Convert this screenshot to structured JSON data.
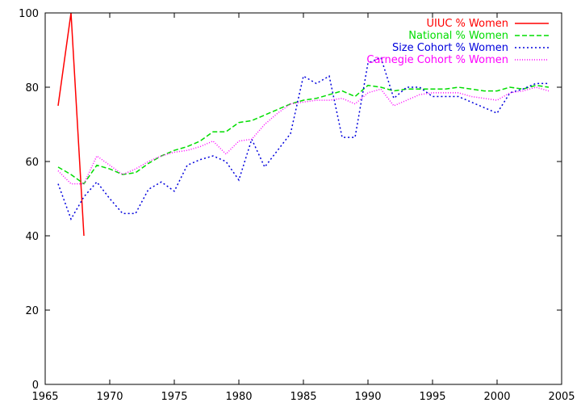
{
  "chart_data": {
    "type": "line",
    "title": "",
    "xlabel": "",
    "ylabel": "",
    "xlim": [
      1965,
      2005
    ],
    "ylim": [
      0,
      100
    ],
    "xticks": [
      1965,
      1970,
      1975,
      1980,
      1985,
      1990,
      1995,
      2000,
      2005
    ],
    "yticks": [
      0,
      20,
      40,
      60,
      80,
      100
    ],
    "grid": false,
    "legend_position": "top-right",
    "series": [
      {
        "name": "UIUC % Women",
        "color": "#ff0000",
        "dash": "solid",
        "x": [
          1966,
          1967,
          1968
        ],
        "y": [
          75,
          100,
          40
        ]
      },
      {
        "name": "National % Women",
        "color": "#00dd00",
        "dash": "dashed",
        "x": [
          1966,
          1967,
          1968,
          1969,
          1970,
          1971,
          1972,
          1973,
          1974,
          1975,
          1976,
          1977,
          1978,
          1979,
          1980,
          1981,
          1982,
          1983,
          1984,
          1985,
          1986,
          1987,
          1988,
          1989,
          1990,
          1991,
          1992,
          1993,
          1994,
          1995,
          1996,
          1997,
          1998,
          1999,
          2000,
          2001,
          2002,
          2003,
          2004
        ],
        "y": [
          58.5,
          56.5,
          54,
          59,
          58,
          56.5,
          57,
          59.5,
          61.5,
          63,
          64,
          65.5,
          68,
          68,
          70.5,
          71,
          72.5,
          74,
          75.5,
          76.5,
          77,
          78,
          79,
          77.5,
          80.5,
          80,
          79,
          79.5,
          79.5,
          79.5,
          79.5,
          80,
          79.5,
          79,
          79,
          80,
          79.5,
          80.5,
          80
        ]
      },
      {
        "name": "Size Cohort % Women",
        "color": "#0000dd",
        "dash": "dotted-coarse",
        "x": [
          1966,
          1967,
          1968,
          1969,
          1970,
          1971,
          1972,
          1973,
          1974,
          1975,
          1976,
          1977,
          1978,
          1979,
          1980,
          1981,
          1982,
          1983,
          1984,
          1985,
          1986,
          1987,
          1988,
          1989,
          1990,
          1991,
          1992,
          1993,
          1994,
          1995,
          1996,
          1997,
          1998,
          1999,
          2000,
          2001,
          2002,
          2003,
          2004
        ],
        "y": [
          54,
          44.5,
          50.5,
          54.5,
          50,
          46,
          46,
          52.5,
          54.5,
          52,
          59,
          60.5,
          61.5,
          60,
          55,
          66,
          58.5,
          63,
          67.5,
          83,
          81,
          83,
          66.5,
          66.5,
          86.5,
          88,
          77,
          80,
          80,
          77.5,
          77.5,
          77.5,
          76,
          74.5,
          73,
          78.5,
          79.5,
          81,
          81
        ]
      },
      {
        "name": "Carnegie Cohort % Women",
        "color": "#ff00ff",
        "dash": "dotted-fine",
        "x": [
          1966,
          1967,
          1968,
          1969,
          1970,
          1971,
          1972,
          1973,
          1974,
          1975,
          1976,
          1977,
          1978,
          1979,
          1980,
          1981,
          1982,
          1983,
          1984,
          1985,
          1986,
          1987,
          1988,
          1989,
          1990,
          1991,
          1992,
          1993,
          1994,
          1995,
          1996,
          1997,
          1998,
          1999,
          2000,
          2001,
          2002,
          2003,
          2004
        ],
        "y": [
          57.5,
          54,
          54,
          61.5,
          59,
          56.5,
          58,
          60,
          61.5,
          62.5,
          63,
          64,
          65.5,
          62,
          65.5,
          66,
          70,
          73,
          75.5,
          76,
          76.5,
          76.5,
          77,
          75.5,
          78.5,
          79.5,
          75,
          76.5,
          78,
          78.5,
          78.5,
          78.5,
          77.5,
          77,
          76.5,
          78.5,
          79,
          80,
          79
        ]
      }
    ]
  }
}
